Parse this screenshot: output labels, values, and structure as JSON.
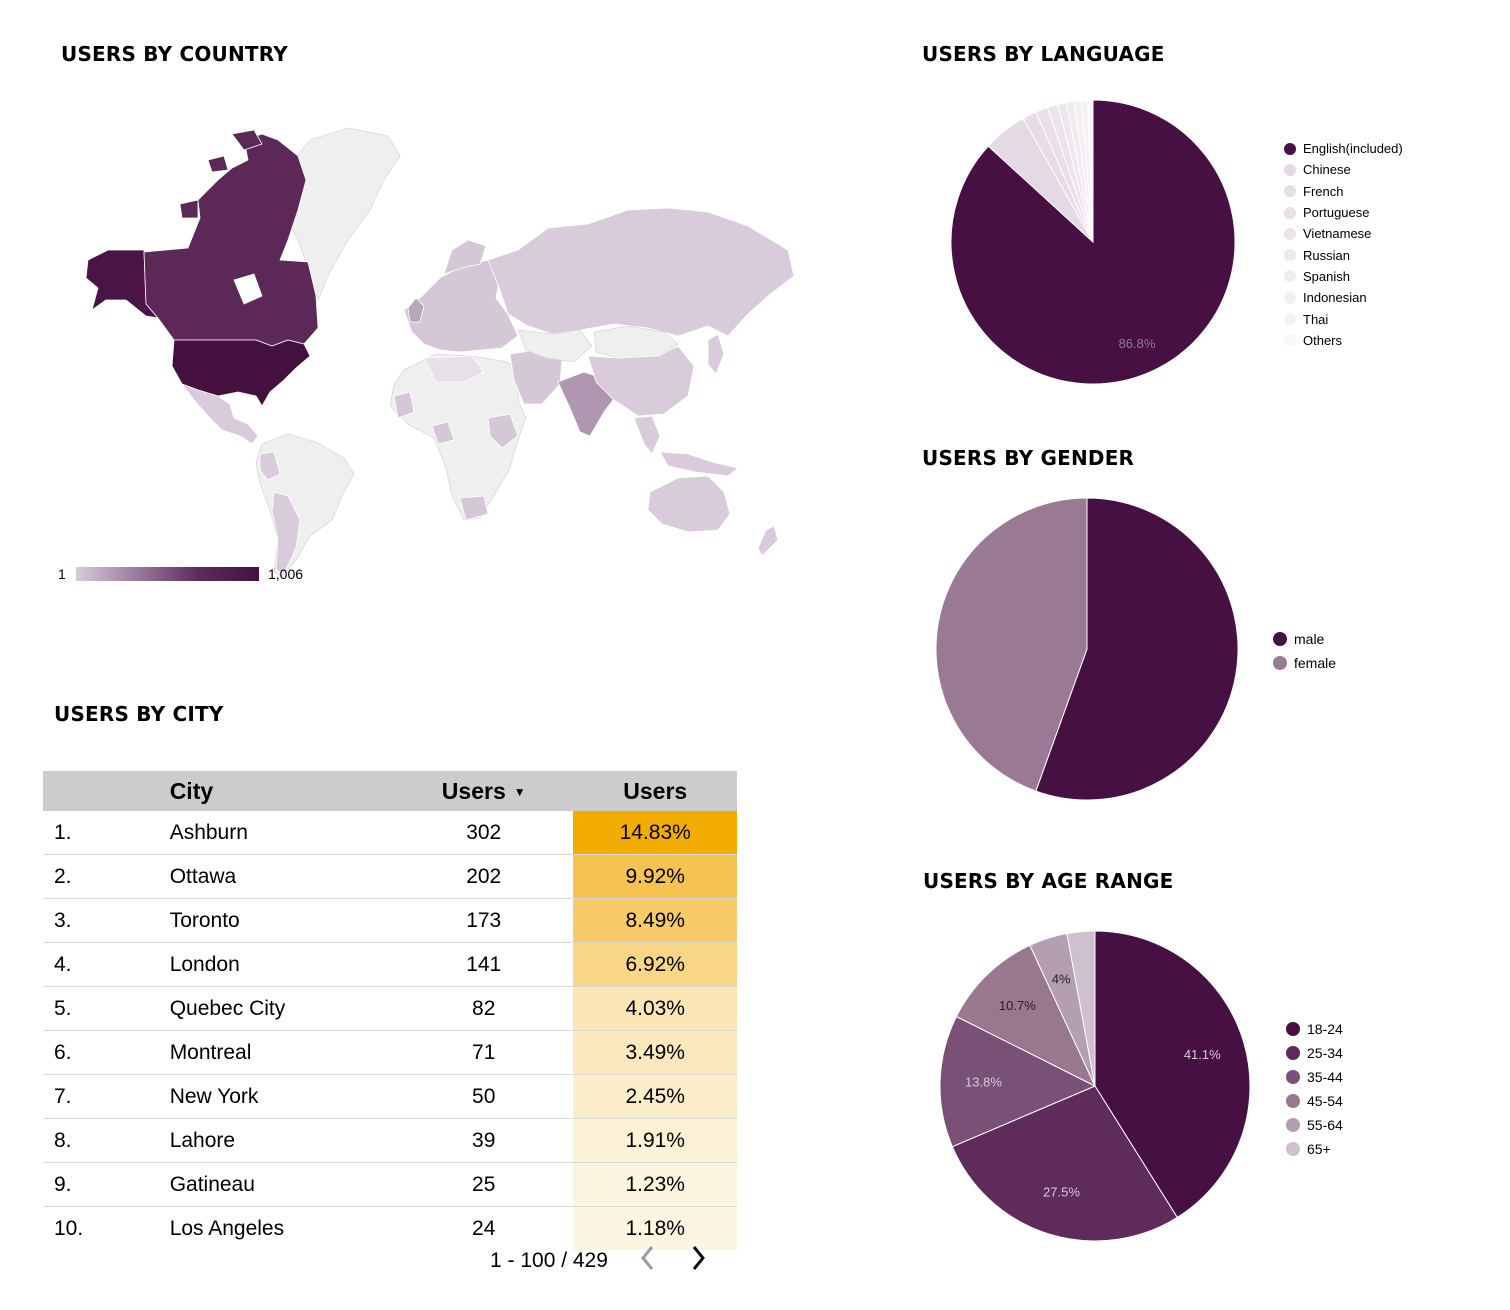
{
  "titles": {
    "country": "USERS BY COUNTRY",
    "language": "USERS BY LANGUAGE",
    "gender": "USERS BY GENDER",
    "age": "USERS BY AGE RANGE",
    "city": "USERS BY CITY"
  },
  "map": {
    "scale_min": "1",
    "scale_max": "1,006",
    "color_low": "#d9cbdc",
    "color_high": "#44113f",
    "no_data_color": "#efefef"
  },
  "chart_data": [
    {
      "type": "pie",
      "id": "language",
      "title": "USERS BY LANGUAGE",
      "categories": [
        "English(included)",
        "Chinese",
        "French",
        "Portuguese",
        "Vietnamese",
        "Russian",
        "Spanish",
        "Indonesian",
        "Thai",
        "Others"
      ],
      "values": [
        86.8,
        5.0,
        1.6,
        1.4,
        1.2,
        1.0,
        0.9,
        0.8,
        0.7,
        0.6
      ],
      "colors": [
        "#461042",
        "#e3dae4",
        "#e6dde7",
        "#e8e0e9",
        "#ebe4ec",
        "#eee8ee",
        "#f0ebf1",
        "#f3eff3",
        "#f5f2f6",
        "#f8f6f8"
      ],
      "data_labels": [
        "86.8%",
        "",
        "",
        "",
        "",
        "",
        "",
        "",
        "",
        ""
      ],
      "legend_position": "right"
    },
    {
      "type": "pie",
      "id": "gender",
      "title": "USERS BY GENDER",
      "categories": [
        "male",
        "female"
      ],
      "values": [
        55.5,
        44.5
      ],
      "colors": [
        "#461042",
        "#9a7995"
      ],
      "data_labels": [
        "",
        ""
      ],
      "legend_position": "right"
    },
    {
      "type": "pie",
      "id": "age",
      "title": "USERS BY AGE RANGE",
      "categories": [
        "18-24",
        "25-34",
        "35-44",
        "45-54",
        "55-64",
        "65+"
      ],
      "values": [
        41.1,
        27.5,
        13.8,
        10.7,
        4.0,
        2.9
      ],
      "colors": [
        "#461042",
        "#5e2b5a",
        "#7a5176",
        "#98778f",
        "#b39eb2",
        "#cfc0cf"
      ],
      "data_labels": [
        "41.1%",
        "27.5%",
        "13.8%",
        "10.7%",
        "4%",
        ""
      ],
      "legend_position": "right"
    },
    {
      "type": "table",
      "id": "city",
      "title": "USERS BY CITY",
      "columns": [
        "",
        "City",
        "Users",
        "Users"
      ],
      "rows": [
        {
          "rank": "1.",
          "city": "Ashburn",
          "users": "302",
          "pct": "14.83%",
          "bar_color": "#f2ac00"
        },
        {
          "rank": "2.",
          "city": "Ottawa",
          "users": "202",
          "pct": "9.92%",
          "bar_color": "#f5c34f"
        },
        {
          "rank": "3.",
          "city": "Toronto",
          "users": "173",
          "pct": "8.49%",
          "bar_color": "#f7cc68"
        },
        {
          "rank": "4.",
          "city": "London",
          "users": "141",
          "pct": "6.92%",
          "bar_color": "#f8d686"
        },
        {
          "rank": "5.",
          "city": "Quebec City",
          "users": "82",
          "pct": "4.03%",
          "bar_color": "#fbe6b6"
        },
        {
          "rank": "6.",
          "city": "Montreal",
          "users": "71",
          "pct": "3.49%",
          "bar_color": "#fbe8bd"
        },
        {
          "rank": "7.",
          "city": "New York",
          "users": "50",
          "pct": "2.45%",
          "bar_color": "#fcedcb"
        },
        {
          "rank": "8.",
          "city": "Lahore",
          "users": "39",
          "pct": "1.91%",
          "bar_color": "#fdf1d6"
        },
        {
          "rank": "9.",
          "city": "Gatineau",
          "users": "25",
          "pct": "1.23%",
          "bar_color": "#fdf4df"
        },
        {
          "rank": "10.",
          "city": "Los Angeles",
          "users": "24",
          "pct": "1.18%",
          "bar_color": "#fdf5e1"
        }
      ]
    }
  ],
  "table": {
    "header_city": "City",
    "header_users": "Users",
    "header_pct": "Users",
    "sort_indicator": "▼",
    "pagination": "1 - 100 / 429",
    "prev_icon": "chevron-left",
    "next_icon": "chevron-right"
  }
}
